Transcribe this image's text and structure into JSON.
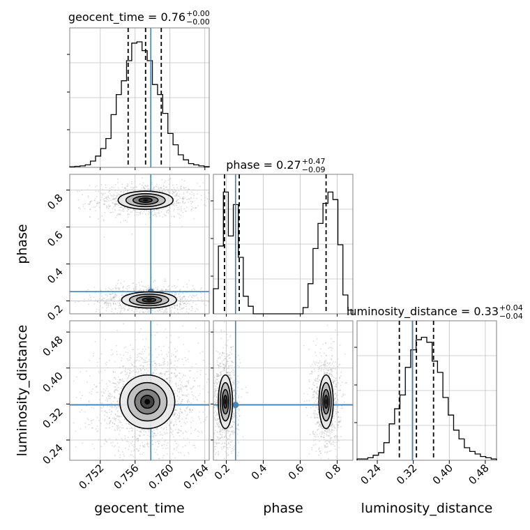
{
  "colors": {
    "truth": "#4682b4",
    "hist": "#000000",
    "grid": "#c0c0c0",
    "frame": "#808080",
    "cloud": "#9a9a9a"
  },
  "chart_data": {
    "type": "corner",
    "parameters": [
      "geocent_time",
      "phase",
      "luminosity_distance"
    ],
    "titles": [
      {
        "param": "geocent_time",
        "text": "geocent_time = 0.76",
        "upper": "+0.00",
        "lower": "−0.00"
      },
      {
        "param": "phase",
        "text": "phase = 0.27",
        "upper": "+0.47",
        "lower": "−0.09"
      },
      {
        "param": "luminosity_distance",
        "text": "luminosity_distance = 0.33",
        "upper": "+0.04",
        "lower": "−0.04"
      }
    ],
    "axis_labels": {
      "x": [
        "geocent_time",
        "phase",
        "luminosity_distance"
      ],
      "y": [
        "phase",
        "luminosity_distance"
      ]
    },
    "ranges": {
      "geocent_time": [
        0.7485,
        0.7645
      ],
      "phase": [
        0.13,
        0.885
      ],
      "luminosity_distance": [
        0.195,
        0.505
      ]
    },
    "ticks": {
      "geocent_time": [
        {
          "v": 0.752,
          "label": "0.752"
        },
        {
          "v": 0.756,
          "label": "0.756"
        },
        {
          "v": 0.76,
          "label": "0.760"
        },
        {
          "v": 0.764,
          "label": "0.764"
        }
      ],
      "phase": [
        {
          "v": 0.2,
          "label": "0.2"
        },
        {
          "v": 0.4,
          "label": "0.4"
        },
        {
          "v": 0.6,
          "label": "0.6"
        },
        {
          "v": 0.8,
          "label": "0.8"
        }
      ],
      "luminosity_distance": [
        {
          "v": 0.24,
          "label": "0.24"
        },
        {
          "v": 0.32,
          "label": "0.32"
        },
        {
          "v": 0.4,
          "label": "0.40"
        },
        {
          "v": 0.48,
          "label": "0.48"
        }
      ]
    },
    "truths": {
      "geocent_time": 0.7578,
      "phase": 0.25,
      "luminosity_distance": 0.318
    },
    "quantiles": {
      "geocent_time": [
        0.7552,
        0.7572,
        0.759
      ],
      "phase": [
        0.19,
        0.27,
        0.74
      ],
      "luminosity_distance": [
        0.289,
        0.327,
        0.365
      ]
    },
    "histograms": {
      "geocent_time": [
        0.005,
        0.008,
        0.012,
        0.02,
        0.05,
        0.09,
        0.15,
        0.23,
        0.42,
        0.58,
        0.69,
        0.85,
        0.99,
        1.0,
        0.93,
        0.85,
        0.66,
        0.58,
        0.43,
        0.27,
        0.18,
        0.1,
        0.06,
        0.03,
        0.02,
        0.012,
        0.006
      ],
      "phase": [
        0.2,
        0.54,
        0.97,
        0.62,
        0.87,
        0.45,
        0.14,
        0.06,
        0.0,
        0.0,
        0.0,
        0.0,
        0.0,
        0.0,
        0.0,
        0.0,
        0.0,
        0.0,
        0.05,
        0.24,
        0.52,
        0.72,
        0.88,
        0.97,
        0.91,
        0.55,
        0.15,
        0.03
      ],
      "luminosity_distance": [
        0.01,
        0.01,
        0.02,
        0.04,
        0.06,
        0.14,
        0.29,
        0.41,
        0.52,
        0.74,
        0.88,
        0.96,
        0.98,
        0.94,
        0.79,
        0.7,
        0.5,
        0.36,
        0.24,
        0.17,
        0.1,
        0.07,
        0.05,
        0.03,
        0.02,
        0.01
      ]
    },
    "grid": true
  }
}
